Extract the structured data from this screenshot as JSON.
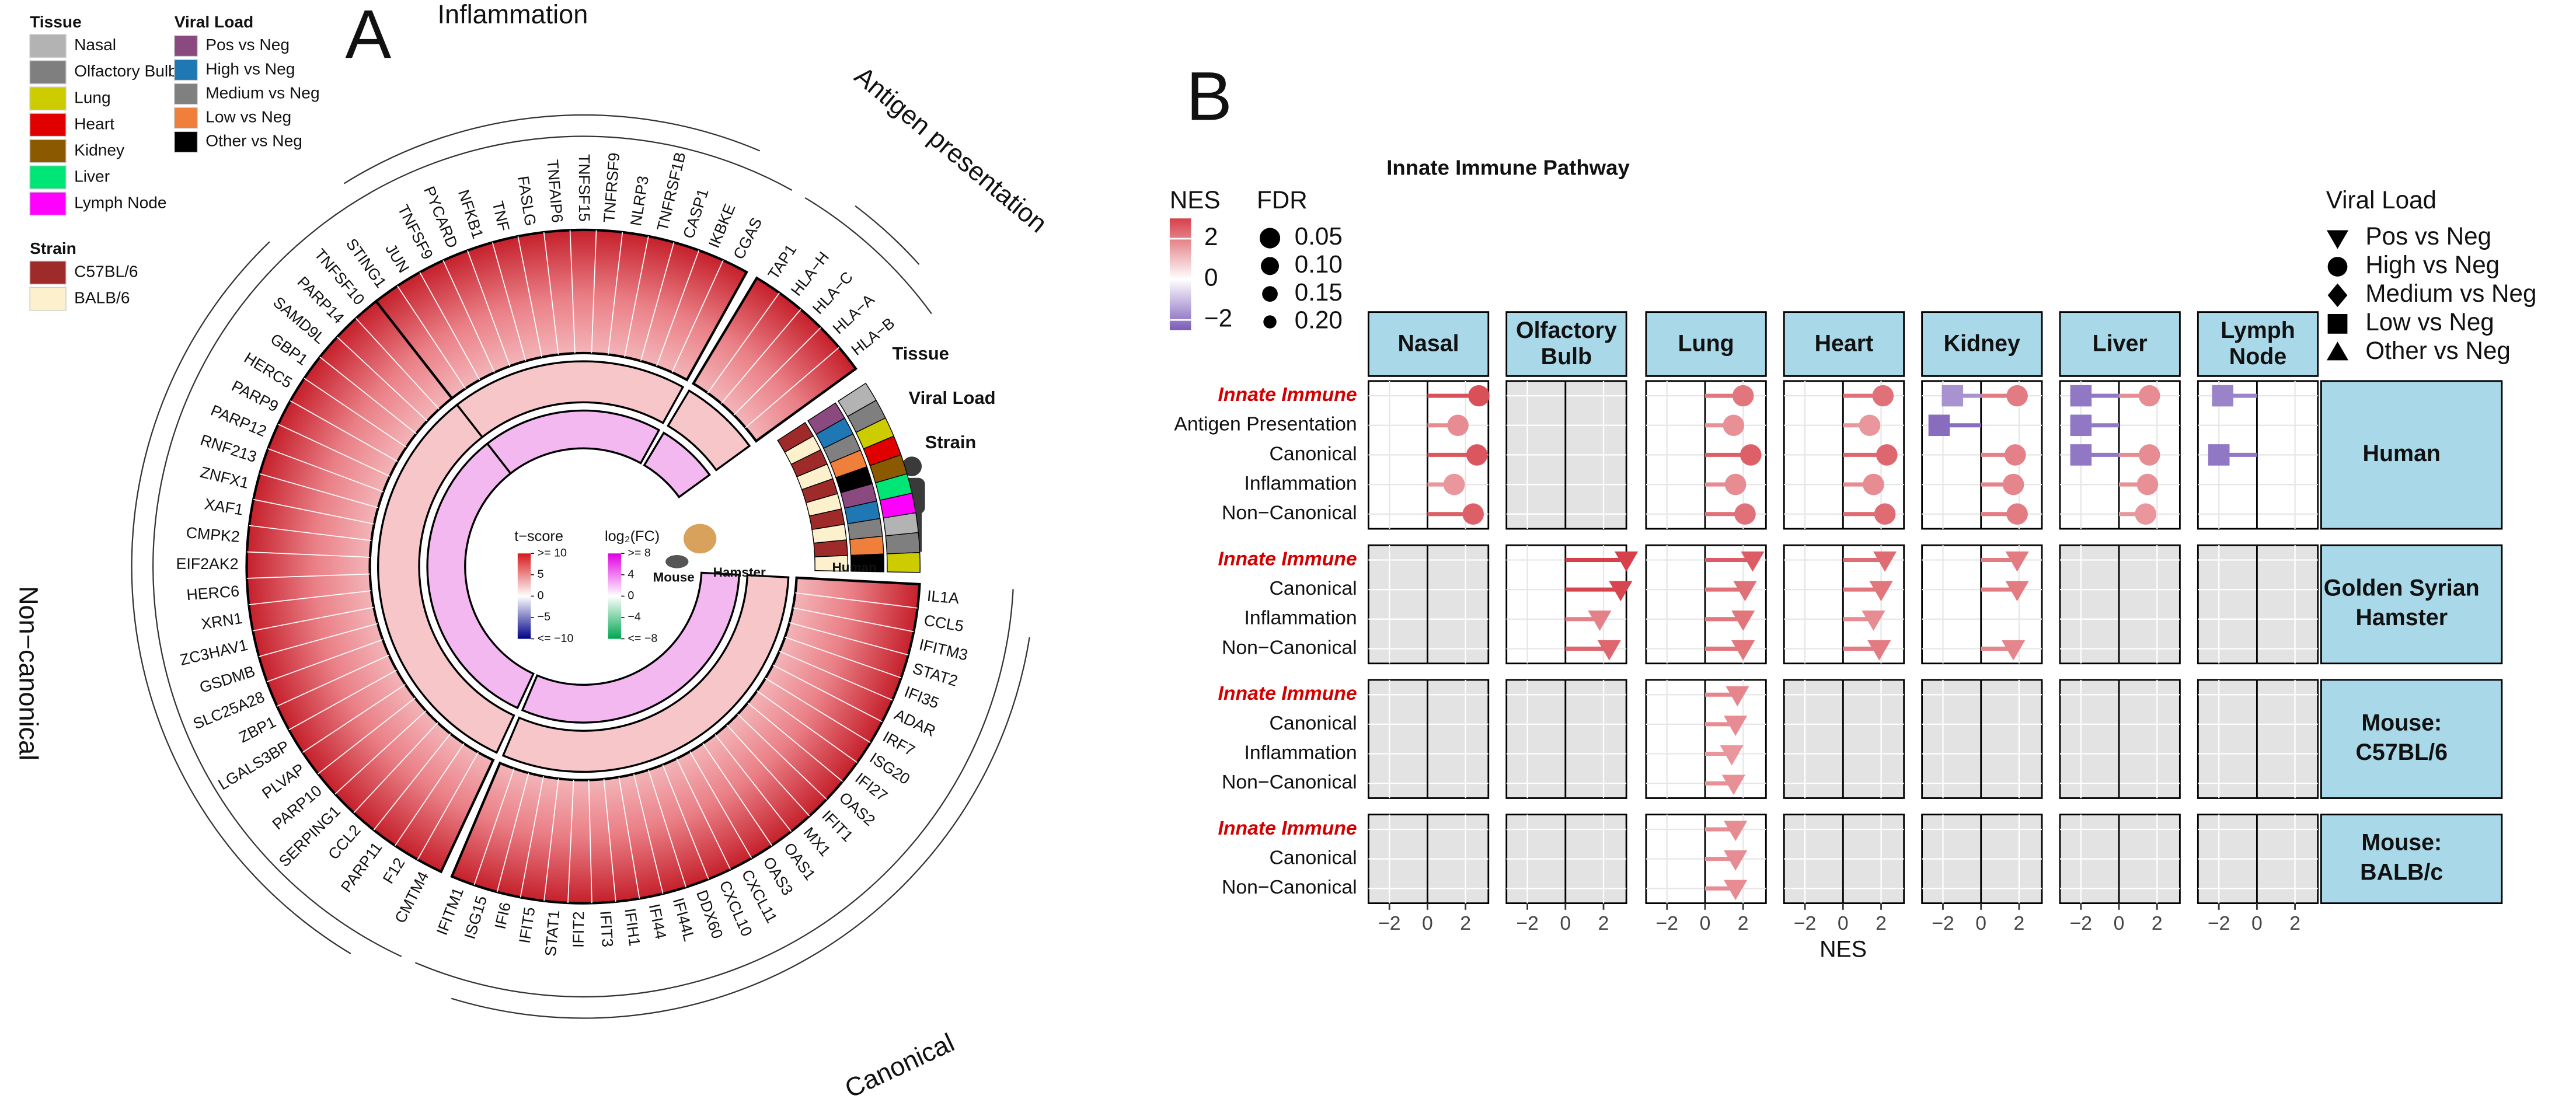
{
  "panel_a": {
    "label": "A",
    "sections": [
      {
        "name": "Inflammation",
        "genes": [
          "STING1",
          "JUN",
          "TNFSF9",
          "PYCARD",
          "NFKB1",
          "TNF",
          "FASLG",
          "TNFAIP6",
          "TNFSF15",
          "TNFRSF9",
          "NLRP3",
          "TNFRSF1B",
          "CASP1",
          "IKBKE",
          "CGAS"
        ]
      },
      {
        "name": "Antigen presentation",
        "genes": [
          "TAP1",
          "HLA−H",
          "HLA−C",
          "HLA−A",
          "HLA−B"
        ]
      },
      {
        "name": "Canonical",
        "genes": [
          "IL1A",
          "CCL5",
          "IFITM3",
          "STAT2",
          "IFI35",
          "ADAR",
          "IRF7",
          "ISG20",
          "IFI27",
          "OAS2",
          "IFIT1",
          "MX1",
          "OAS1",
          "OAS3",
          "CXCL11",
          "CXCL10",
          "DDX60",
          "IFI44L",
          "IFI44",
          "IFIH1",
          "IFIT3",
          "IFIT2",
          "STAT1",
          "IFIT5",
          "IFI6",
          "ISG15",
          "IFITM1"
        ]
      },
      {
        "name": "Non−canonical",
        "genes": [
          "CMTM4",
          "F12",
          "PARP11",
          "CCL2",
          "SERPING1",
          "PARP10",
          "PLVAP",
          "LGALS3BP",
          "ZBP1",
          "SLC25A28",
          "GSDMB",
          "ZC3HAV1",
          "XRN1",
          "HERC6",
          "EIF2AK2",
          "CMPK2",
          "XAF1",
          "ZNFX1",
          "RNF213",
          "PARP12",
          "PARP9",
          "HERC5",
          "GBP1",
          "SAMD9L",
          "PARP14",
          "TNFSF10"
        ]
      }
    ],
    "ring_labels": [
      "Tissue",
      "Viral Load",
      "Strain"
    ],
    "host_labels": [
      "Human",
      "Mouse",
      "Hamster"
    ],
    "tissue_legend": {
      "title": "Tissue",
      "items": [
        {
          "name": "Nasal",
          "color": "#b3b3b3"
        },
        {
          "name": "Olfactory Bulb",
          "color": "#7f7f7f"
        },
        {
          "name": "Lung",
          "color": "#cccc00"
        },
        {
          "name": "Heart",
          "color": "#e00000"
        },
        {
          "name": "Kidney",
          "color": "#8b5a00"
        },
        {
          "name": "Liver",
          "color": "#00e676"
        },
        {
          "name": "Lymph Node",
          "color": "#ff00ff"
        }
      ]
    },
    "viral_legend": {
      "title": "Viral Load",
      "items": [
        {
          "name": "Pos vs Neg",
          "color": "#8b4a7f"
        },
        {
          "name": "High vs Neg",
          "color": "#1f78b4"
        },
        {
          "name": "Medium vs Neg",
          "color": "#808080"
        },
        {
          "name": "Low vs Neg",
          "color": "#f07f3c"
        },
        {
          "name": "Other vs Neg",
          "color": "#000000"
        }
      ]
    },
    "strain_legend": {
      "title": "Strain",
      "items": [
        {
          "name": "C57BL/6",
          "color": "#9e2a2a"
        },
        {
          "name": "BALB/6",
          "color": "#fdf0cc"
        }
      ]
    },
    "tscore": {
      "title": "t−score",
      "colors": [
        "#00008b",
        "#ffffff",
        "#d7191c"
      ],
      "ticks": [
        {
          "value": 10,
          "label": ">= 10"
        },
        5,
        0,
        {
          "value": -5,
          "label": "−5"
        },
        {
          "value": -10,
          "label": "<= −10"
        }
      ]
    },
    "log2fc": {
      "title": "log₂(FC)",
      "colors": [
        "#00a651",
        "#ffffff",
        "#e000e0"
      ],
      "ticks": [
        {
          "value": 8,
          "label": ">= 8"
        },
        4,
        0,
        {
          "value": -4,
          "label": "−4"
        },
        {
          "value": -8,
          "label": "<= −8"
        }
      ]
    }
  },
  "chart_data": {
    "type": "lollipop",
    "label": "B",
    "title": "Innate Immune Pathway",
    "tissues": [
      [
        "Nasal"
      ],
      [
        "Olfactory",
        "Bulb"
      ],
      [
        "Lung"
      ],
      [
        "Heart"
      ],
      [
        "Kidney"
      ],
      [
        "Liver"
      ],
      [
        "Lymph",
        "Node"
      ]
    ],
    "xlim": [
      -3.1,
      3.2
    ],
    "xticks": [
      {
        "value": -2,
        "label": "−2"
      },
      0,
      2
    ],
    "xlabel": "NES",
    "grid": true,
    "nes_legend": {
      "title": "NES",
      "lim": [
        -2.5,
        3
      ],
      "colors": [
        "#7b5cb8",
        "#ffffff",
        "#d6404a"
      ],
      "ticks": [
        2,
        0,
        {
          "value": -2,
          "label": "−2"
        }
      ]
    },
    "fdr_legend": {
      "title": "FDR",
      "ticks": [
        0.05,
        {
          "value": 0.1,
          "label": "0.10"
        },
        0.15,
        {
          "value": 0.2,
          "label": "0.20"
        }
      ]
    },
    "viral_legend": {
      "title": "Viral Load",
      "items": [
        {
          "name": "Pos vs Neg",
          "shape": "triangle-down"
        },
        {
          "name": "High vs Neg",
          "shape": "circle"
        },
        {
          "name": "Medium vs Neg",
          "shape": "diamond"
        },
        {
          "name": "Low vs Neg",
          "shape": "square"
        },
        {
          "name": "Other vs Neg",
          "shape": "triangle-up"
        }
      ]
    },
    "facets": [
      {
        "name": [
          "Human"
        ],
        "pathways": [
          "Innate Immune",
          "Antigen Presentation",
          "Canonical",
          "Inflammation",
          "Non−Canonical"
        ],
        "series": [
          {
            "name": "High vs Neg",
            "values": [
              [
                2.7,
                1.6,
                2.6,
                1.4,
                2.4
              ],
              [
                null,
                null,
                null,
                null,
                null
              ],
              [
                2.0,
                1.5,
                2.4,
                1.6,
                2.1
              ],
              [
                2.1,
                1.4,
                2.3,
                1.6,
                2.2
              ],
              [
                1.9,
                null,
                1.8,
                1.7,
                1.9
              ],
              [
                1.6,
                null,
                1.6,
                1.5,
                1.4
              ],
              [
                null,
                null,
                null,
                null,
                null
              ]
            ]
          },
          {
            "name": "Low vs Neg",
            "values": [
              [
                null,
                null,
                null,
                null,
                null
              ],
              [
                null,
                null,
                null,
                null,
                null
              ],
              [
                null,
                null,
                null,
                null,
                null
              ],
              [
                null,
                null,
                null,
                null,
                null
              ],
              [
                -1.5,
                -2.2,
                null,
                null,
                null
              ],
              [
                -2.0,
                -2.0,
                -2.0,
                null,
                null
              ],
              [
                -1.8,
                null,
                -2.0,
                null,
                null
              ]
            ]
          }
        ]
      },
      {
        "name": [
          "Golden Syrian",
          "Hamster"
        ],
        "pathways": [
          "Innate Immune",
          "Canonical",
          "Inflammation",
          "Non−Canonical"
        ],
        "series": [
          {
            "name": "Pos vs Neg",
            "values": [
              [
                null,
                null,
                null,
                null
              ],
              [
                3.2,
                2.9,
                1.8,
                2.3
              ],
              [
                2.5,
                2.1,
                2.0,
                2.0
              ],
              [
                2.2,
                2.0,
                1.6,
                1.9
              ],
              [
                1.9,
                1.9,
                null,
                1.7
              ],
              [
                null,
                null,
                null,
                null
              ],
              [
                null,
                null,
                null,
                null
              ]
            ]
          }
        ]
      },
      {
        "name": [
          "Mouse:",
          "C57BL/6"
        ],
        "pathways": [
          "Innate Immune",
          "Canonical",
          "Inflammation",
          "Non−Canonical"
        ],
        "series": [
          {
            "name": "Pos vs Neg",
            "values": [
              [
                null,
                null,
                null,
                null
              ],
              [
                null,
                null,
                null,
                null
              ],
              [
                1.7,
                1.6,
                1.4,
                1.5
              ],
              [
                null,
                null,
                null,
                null
              ],
              [
                null,
                null,
                null,
                null
              ],
              [
                null,
                null,
                null,
                null
              ],
              [
                null,
                null,
                null,
                null
              ]
            ]
          }
        ]
      },
      {
        "name": [
          "Mouse:",
          "BALB/c"
        ],
        "pathways": [
          "Innate Immune",
          "Canonical",
          "Non−Canonical"
        ],
        "series": [
          {
            "name": "Pos vs Neg",
            "values": [
              [
                null,
                null,
                null
              ],
              [
                null,
                null,
                null
              ],
              [
                1.6,
                1.6,
                1.6
              ],
              [
                null,
                null,
                null
              ],
              [
                null,
                null,
                null
              ],
              [
                null,
                null,
                null
              ],
              [
                null,
                null,
                null
              ]
            ]
          }
        ]
      }
    ]
  }
}
